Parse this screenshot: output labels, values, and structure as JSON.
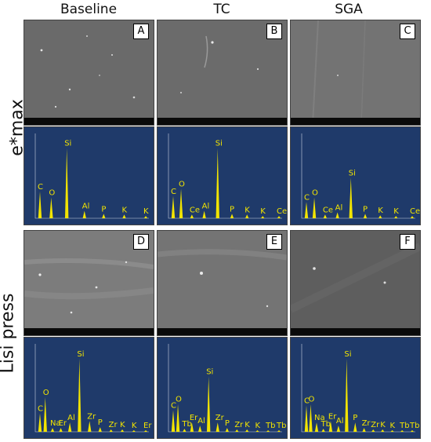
{
  "columns": [
    "Baseline",
    "TC",
    "SGA"
  ],
  "rows": [
    "e*max",
    "Lisi press"
  ],
  "panel_letters": [
    "A",
    "B",
    "C",
    "D",
    "E",
    "F"
  ],
  "colors": {
    "spectrum": "#f2e400",
    "eds_background": "#1f3a6a",
    "sem_gray": "#6e6e6e"
  },
  "eds_spectra": [
    {
      "row": "e*max",
      "column": "Baseline",
      "peaks": [
        {
          "label": "C",
          "h": 0.36
        },
        {
          "label": "O",
          "h": 0.28
        },
        {
          "label": "Si",
          "h": 0.95
        },
        {
          "label": "Al",
          "h": 0.1
        },
        {
          "label": "P",
          "h": 0.06
        },
        {
          "label": "K",
          "h": 0.05
        },
        {
          "label": "K",
          "h": 0.03
        }
      ]
    },
    {
      "row": "e*max",
      "column": "TC",
      "peaks": [
        {
          "label": "C",
          "h": 0.3
        },
        {
          "label": "O",
          "h": 0.4
        },
        {
          "label": "Ce",
          "h": 0.05
        },
        {
          "label": "Al",
          "h": 0.1
        },
        {
          "label": "Si",
          "h": 0.95
        },
        {
          "label": "P",
          "h": 0.06
        },
        {
          "label": "K",
          "h": 0.05
        },
        {
          "label": "K",
          "h": 0.03
        },
        {
          "label": "Ce",
          "h": 0.03
        }
      ]
    },
    {
      "row": "e*max",
      "column": "SGA",
      "peaks": [
        {
          "label": "C",
          "h": 0.22
        },
        {
          "label": "O",
          "h": 0.28
        },
        {
          "label": "Ce",
          "h": 0.05
        },
        {
          "label": "Al",
          "h": 0.08
        },
        {
          "label": "Si",
          "h": 0.55
        },
        {
          "label": "P",
          "h": 0.06
        },
        {
          "label": "K",
          "h": 0.04
        },
        {
          "label": "K",
          "h": 0.03
        },
        {
          "label": "Ce",
          "h": 0.03
        }
      ]
    },
    {
      "row": "Lisi press",
      "column": "Baseline",
      "peaks": [
        {
          "label": "C",
          "h": 0.24
        },
        {
          "label": "O",
          "h": 0.45
        },
        {
          "label": "Na",
          "h": 0.05
        },
        {
          "label": "Er",
          "h": 0.05
        },
        {
          "label": "Al",
          "h": 0.12
        },
        {
          "label": "Si",
          "h": 0.95
        },
        {
          "label": "Zr",
          "h": 0.14
        },
        {
          "label": "P",
          "h": 0.06
        },
        {
          "label": "Zr",
          "h": 0.03
        },
        {
          "label": "K",
          "h": 0.03
        },
        {
          "label": "K",
          "h": 0.02
        },
        {
          "label": "Er",
          "h": 0.02
        }
      ]
    },
    {
      "row": "Lisi press",
      "column": "TC",
      "peaks": [
        {
          "label": "C",
          "h": 0.28
        },
        {
          "label": "O",
          "h": 0.36
        },
        {
          "label": "Tb",
          "h": 0.04
        },
        {
          "label": "Er",
          "h": 0.12
        },
        {
          "label": "Al",
          "h": 0.08
        },
        {
          "label": "Si",
          "h": 0.72
        },
        {
          "label": "Zr",
          "h": 0.12
        },
        {
          "label": "P",
          "h": 0.05
        },
        {
          "label": "Zr",
          "h": 0.03
        },
        {
          "label": "K",
          "h": 0.03
        },
        {
          "label": "K",
          "h": 0.02
        },
        {
          "label": "Tb",
          "h": 0.02
        },
        {
          "label": "Tb",
          "h": 0.02
        }
      ]
    },
    {
      "row": "Lisi press",
      "column": "SGA",
      "peaks": [
        {
          "label": "C",
          "h": 0.34
        },
        {
          "label": "O",
          "h": 0.36
        },
        {
          "label": "Na",
          "h": 0.12
        },
        {
          "label": "Tb",
          "h": 0.04
        },
        {
          "label": "Er",
          "h": 0.14
        },
        {
          "label": "Al",
          "h": 0.08
        },
        {
          "label": "Si",
          "h": 0.95
        },
        {
          "label": "P",
          "h": 0.12
        },
        {
          "label": "Zr",
          "h": 0.05
        },
        {
          "label": "Zr",
          "h": 0.03
        },
        {
          "label": "K",
          "h": 0.03
        },
        {
          "label": "K",
          "h": 0.02
        },
        {
          "label": "Tb",
          "h": 0.02
        },
        {
          "label": "Tb",
          "h": 0.02
        }
      ]
    }
  ]
}
